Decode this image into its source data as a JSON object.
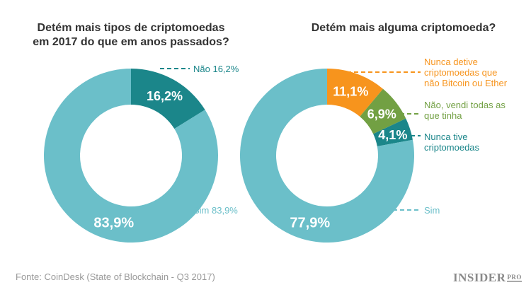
{
  "chart_data": [
    {
      "type": "pie",
      "donut": true,
      "title": "Detém mais tipos de criptomoedas em 2017 do que em anos passados?",
      "slices": [
        {
          "label": "Não",
          "value": 16.2,
          "value_label": "16,2%",
          "legend": "Não 16,2%",
          "color": "#1b868a"
        },
        {
          "label": "Sim",
          "value": 83.9,
          "value_label": "83,9%",
          "legend": "Sim 83,9%",
          "color": "#6bbfc9"
        }
      ]
    },
    {
      "type": "pie",
      "donut": true,
      "title": "Detém mais alguma criptomoeda?",
      "slices": [
        {
          "label": "Nunca detive criptomoedas que não Bitcoin ou Ether",
          "value": 11.1,
          "value_label": "11,1%",
          "color": "#f7941d"
        },
        {
          "label": "Não, vendi todas as que tinha",
          "value": 6.9,
          "value_label": "6,9%",
          "color": "#72a043"
        },
        {
          "label": "Nunca tive criptomoedas",
          "value": 4.1,
          "value_label": "4,1%",
          "color": "#1b868a"
        },
        {
          "label": "Sim",
          "value": 77.9,
          "value_label": "77,9%",
          "color": "#6bbfc9"
        }
      ]
    }
  ],
  "source": "Fonte: CoinDesk (State of Blockchain - Q3 2017)",
  "logo": {
    "text": "INSIDER",
    "sub": "PRO"
  }
}
